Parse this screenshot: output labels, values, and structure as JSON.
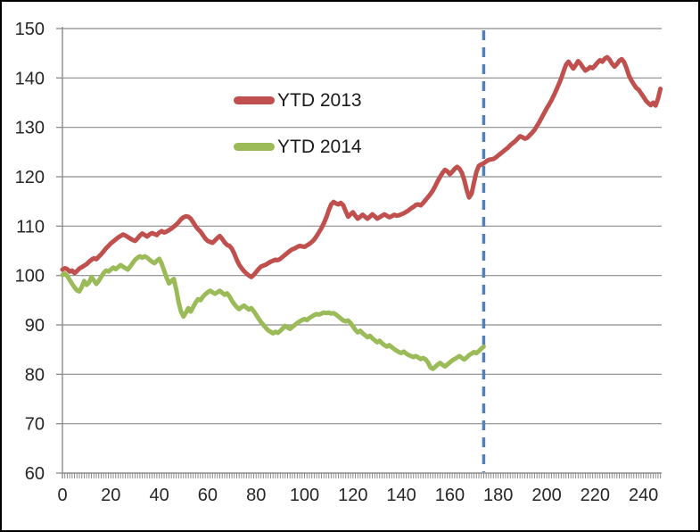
{
  "chart_data": {
    "type": "line",
    "title": "",
    "xlabel": "",
    "ylabel": "",
    "xlim": [
      0,
      247.5
    ],
    "ylim": [
      60,
      150
    ],
    "x_ticks": [
      0,
      20,
      40,
      60,
      80,
      100,
      120,
      140,
      160,
      180,
      200,
      220,
      240
    ],
    "y_ticks": [
      60,
      70,
      80,
      90,
      100,
      110,
      120,
      130,
      140,
      150
    ],
    "x_minor_tick_step": 1,
    "x_minor_tick_end": 247,
    "grid": "horizontal",
    "gridline_color": "#8C8C8C",
    "axis_color": "#8C8C8C",
    "tick_label_color": "#262626",
    "legend_position": "inside-upper-left",
    "annotations": [
      {
        "type": "vertical-dashed-line",
        "x": 174,
        "color": "#4F81BD"
      }
    ],
    "series": [
      {
        "name": "YTD 2013",
        "color": "#C0504D",
        "x_start": 0,
        "x_step": 1,
        "values": [
          101.2,
          101.5,
          101.3,
          100.8,
          101.0,
          100.5,
          100.9,
          101.4,
          101.7,
          102.0,
          102.3,
          102.8,
          103.2,
          103.5,
          103.3,
          103.8,
          104.3,
          104.9,
          105.5,
          106.0,
          106.5,
          106.9,
          107.3,
          107.7,
          108.0,
          108.3,
          108.1,
          107.8,
          107.5,
          107.2,
          107.0,
          107.5,
          108.1,
          108.5,
          108.2,
          107.9,
          108.3,
          108.6,
          108.4,
          108.2,
          108.7,
          109.0,
          108.7,
          108.9,
          109.2,
          109.5,
          109.9,
          110.3,
          110.8,
          111.4,
          111.8,
          112.0,
          111.9,
          111.5,
          110.8,
          110.0,
          109.4,
          108.9,
          108.2,
          107.5,
          107.0,
          106.8,
          106.6,
          107.1,
          107.6,
          108.0,
          107.4,
          106.7,
          106.2,
          106.0,
          105.4,
          104.4,
          103.2,
          102.2,
          101.5,
          100.9,
          100.4,
          100.0,
          99.7,
          100.1,
          100.7,
          101.3,
          101.8,
          102.0,
          102.2,
          102.5,
          102.8,
          103.0,
          103.2,
          103.1,
          103.4,
          103.8,
          104.2,
          104.6,
          105.0,
          105.3,
          105.5,
          105.8,
          106.0,
          105.9,
          105.8,
          106.1,
          106.4,
          106.8,
          107.3,
          108.0,
          108.8,
          109.6,
          110.6,
          111.8,
          113.2,
          114.4,
          114.9,
          114.6,
          114.4,
          114.7,
          114.2,
          113.0,
          111.9,
          112.4,
          112.8,
          112.1,
          111.5,
          111.9,
          112.3,
          111.9,
          111.5,
          111.9,
          112.4,
          112.0,
          111.5,
          111.8,
          112.1,
          112.4,
          112.1,
          111.8,
          112.0,
          112.3,
          112.1,
          112.2,
          112.4,
          112.6,
          112.9,
          113.2,
          113.6,
          113.9,
          114.3,
          114.4,
          114.2,
          114.7,
          115.3,
          115.9,
          116.5,
          117.2,
          118.1,
          119.1,
          120.0,
          120.8,
          121.4,
          121.1,
          120.5,
          121.0,
          121.6,
          122.0,
          121.6,
          120.8,
          119.3,
          117.3,
          115.8,
          116.6,
          118.9,
          121.0,
          122.2,
          122.5,
          122.7,
          123.1,
          123.4,
          123.5,
          123.6,
          123.9,
          124.3,
          124.7,
          125.1,
          125.5,
          125.9,
          126.4,
          126.8,
          127.2,
          127.7,
          128.2,
          128.0,
          127.7,
          127.9,
          128.4,
          128.9,
          129.5,
          130.3,
          131.1,
          132.0,
          132.9,
          133.8,
          134.6,
          135.5,
          136.5,
          137.6,
          138.7,
          139.9,
          141.3,
          142.7,
          143.3,
          142.6,
          141.9,
          142.6,
          143.4,
          142.9,
          142.1,
          141.5,
          141.8,
          142.2,
          142.0,
          142.5,
          143.1,
          143.6,
          143.3,
          143.9,
          144.2,
          143.7,
          142.9,
          142.3,
          142.8,
          143.5,
          143.8,
          143.2,
          142.0,
          140.5,
          139.5,
          138.7,
          138.0,
          137.6,
          136.9,
          136.2,
          135.4,
          134.9,
          134.5,
          135.0,
          134.4,
          135.8,
          137.8
        ]
      },
      {
        "name": "YTD 2014",
        "color": "#9BBB59",
        "x_start": 0,
        "x_step": 1,
        "values": [
          100.1,
          100.4,
          99.9,
          99.1,
          98.3,
          97.6,
          97.0,
          96.8,
          97.7,
          98.9,
          98.1,
          98.6,
          99.7,
          99.0,
          98.3,
          98.9,
          99.7,
          100.5,
          101.0,
          100.8,
          101.2,
          101.6,
          101.3,
          101.7,
          102.1,
          101.8,
          101.5,
          101.2,
          101.8,
          102.5,
          103.2,
          103.6,
          103.9,
          103.6,
          103.9,
          103.6,
          103.2,
          102.8,
          102.5,
          103.0,
          103.4,
          102.4,
          101.0,
          99.6,
          98.4,
          98.9,
          99.3,
          97.2,
          94.6,
          92.7,
          91.7,
          92.5,
          93.4,
          92.7,
          93.6,
          94.5,
          95.2,
          95.0,
          95.7,
          96.2,
          96.6,
          96.9,
          96.6,
          96.3,
          96.6,
          96.9,
          96.5,
          96.1,
          96.4,
          95.8,
          94.9,
          94.2,
          93.6,
          93.2,
          93.6,
          93.9,
          93.5,
          93.1,
          93.4,
          92.8,
          92.1,
          91.3,
          90.6,
          90.0,
          89.4,
          88.9,
          88.6,
          88.3,
          88.6,
          88.4,
          88.8,
          89.3,
          89.8,
          89.5,
          89.2,
          89.6,
          90.0,
          90.4,
          90.7,
          91.0,
          91.2,
          91.0,
          91.4,
          91.7,
          92.0,
          92.2,
          92.1,
          92.3,
          92.5,
          92.4,
          92.5,
          92.3,
          92.4,
          92.1,
          91.7,
          91.3,
          90.9,
          90.7,
          90.9,
          90.4,
          89.7,
          89.0,
          88.5,
          88.8,
          88.3,
          87.9,
          87.5,
          87.8,
          87.3,
          86.9,
          86.5,
          86.8,
          86.3,
          85.9,
          85.6,
          85.9,
          85.5,
          85.1,
          84.8,
          84.5,
          84.3,
          84.6,
          84.2,
          83.9,
          83.7,
          83.5,
          83.7,
          83.4,
          83.1,
          83.3,
          83.0,
          82.4,
          81.4,
          81.1,
          81.5,
          82.0,
          82.3,
          81.9,
          81.6,
          82.0,
          82.4,
          82.8,
          83.1,
          83.4,
          83.7,
          83.3,
          83.0,
          83.4,
          83.9,
          84.2,
          84.5,
          84.3,
          84.7,
          85.2,
          85.6
        ]
      }
    ]
  },
  "legend": {
    "items": [
      {
        "label": "YTD 2013",
        "color": "#C0504D"
      },
      {
        "label": "YTD 2014",
        "color": "#9BBB59"
      }
    ]
  }
}
